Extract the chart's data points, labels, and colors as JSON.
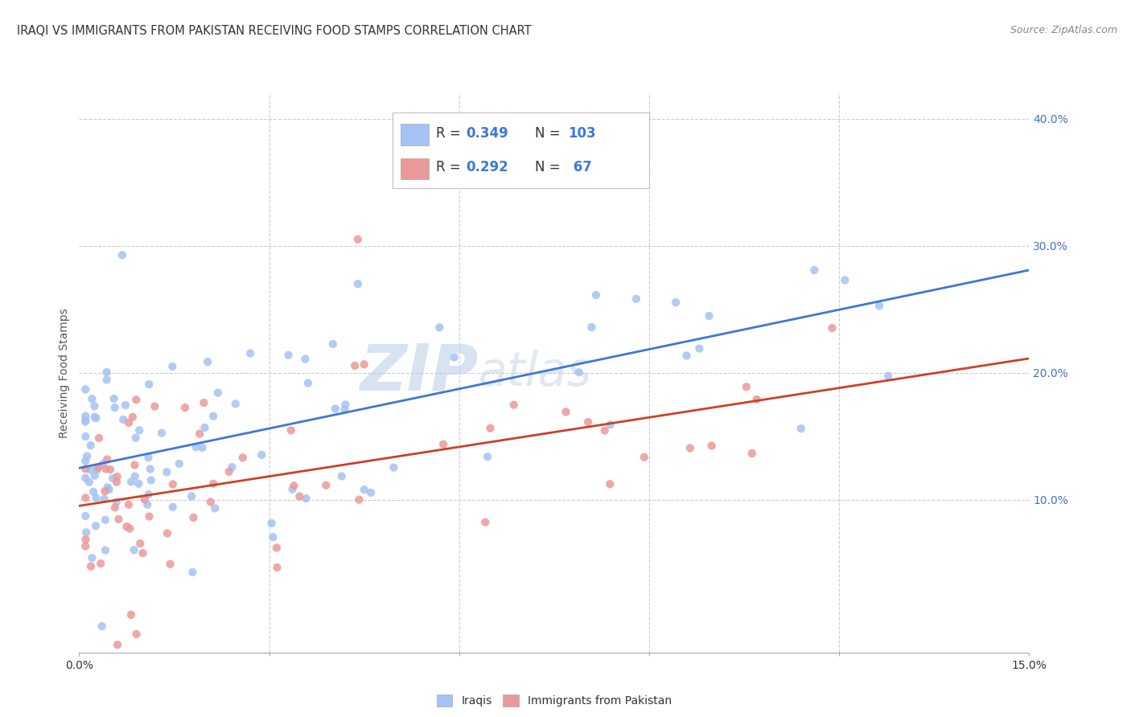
{
  "title": "IRAQI VS IMMIGRANTS FROM PAKISTAN RECEIVING FOOD STAMPS CORRELATION CHART",
  "source": "Source: ZipAtlas.com",
  "ylabel": "Receiving Food Stamps",
  "xlim": [
    0.0,
    0.15
  ],
  "ylim": [
    -0.02,
    0.42
  ],
  "yticks_right": [
    0.1,
    0.2,
    0.3,
    0.4
  ],
  "ytick_labels_right": [
    "10.0%",
    "20.0%",
    "30.0%",
    "40.0%"
  ],
  "xticks": [
    0.0,
    0.03,
    0.06,
    0.09,
    0.12,
    0.15
  ],
  "xtick_labels": [
    "0.0%",
    "",
    "",
    "",
    "",
    "15.0%"
  ],
  "iraqi_R": 0.349,
  "iraqi_N": 103,
  "pak_R": 0.292,
  "pak_N": 67,
  "iraqi_color": "#a4c2f4",
  "pak_color": "#ea9999",
  "iraqi_line_color": "#3c78d8",
  "pak_line_color": "#cc4125",
  "watermark_zip": "ZIP",
  "watermark_atlas": "atlas",
  "background_color": "#ffffff",
  "grid_color": "#cccccc",
  "legend_label_iraqi": "Iraqis",
  "legend_label_pak": "Immigrants from Pakistan",
  "title_color": "#333333",
  "source_color": "#888888",
  "ylabel_color": "#555555",
  "tick_color": "#4472c4",
  "xtick_color": "#333333"
}
